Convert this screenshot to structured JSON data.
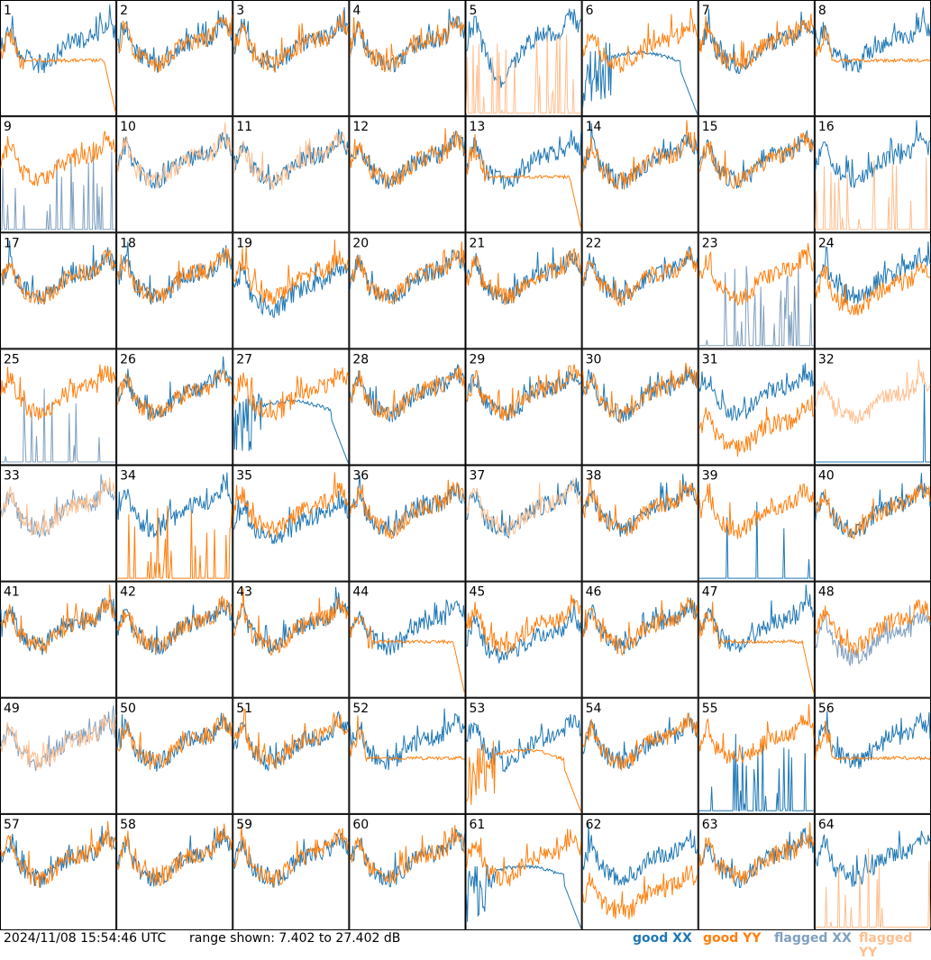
{
  "footer": {
    "timestamp": "2024/11/08 15:54:46 UTC",
    "range_text": "range shown: 7.402 to 27.402 dB"
  },
  "legend": [
    {
      "label": "good XX",
      "color": "#1f77b4"
    },
    {
      "label": "good YY",
      "color": "#ff7f0e"
    },
    {
      "label": "flagged XX",
      "color": "#7f9fbf"
    },
    {
      "label": "flagged YY",
      "color": "#ffbf8f"
    }
  ],
  "chart_data": {
    "type": "line",
    "grid": {
      "rows": 8,
      "cols": 8
    },
    "ylim": [
      7.402,
      27.402
    ],
    "yunit": "dB",
    "panel_labels": [
      "1",
      "2",
      "3",
      "4",
      "5",
      "6",
      "7",
      "8",
      "9",
      "10",
      "11",
      "12",
      "13",
      "14",
      "15",
      "16",
      "17",
      "18",
      "19",
      "20",
      "21",
      "22",
      "23",
      "24",
      "25",
      "26",
      "27",
      "28",
      "29",
      "30",
      "31",
      "32",
      "33",
      "34",
      "35",
      "36",
      "37",
      "38",
      "39",
      "40",
      "41",
      "42",
      "43",
      "44",
      "45",
      "46",
      "47",
      "48",
      "49",
      "50",
      "51",
      "52",
      "53",
      "54",
      "55",
      "56",
      "57",
      "58",
      "59",
      "60",
      "61",
      "62",
      "63",
      "64"
    ],
    "panels": [
      {
        "xx": "good",
        "yy": "anom-flat-drop"
      },
      {
        "xx": "good",
        "yy": "good"
      },
      {
        "xx": "good",
        "yy": "good"
      },
      {
        "xx": "good",
        "yy": "good"
      },
      {
        "xx": "high-deep",
        "yy": "spikes-flagged"
      },
      {
        "xx": "anom-hump",
        "yy": "good"
      },
      {
        "xx": "good",
        "yy": "good"
      },
      {
        "xx": "good",
        "yy": "anom-flat"
      },
      {
        "xx": "spikes-flagged",
        "yy": "good"
      },
      {
        "xx": "good",
        "yy": "flagged"
      },
      {
        "xx": "good",
        "yy": "flagged"
      },
      {
        "xx": "good",
        "yy": "good"
      },
      {
        "xx": "good",
        "yy": "anom-flat-drop"
      },
      {
        "xx": "good",
        "yy": "good"
      },
      {
        "xx": "good",
        "yy": "good"
      },
      {
        "xx": "good",
        "yy": "spikes-flagged"
      },
      {
        "xx": "good",
        "yy": "good"
      },
      {
        "xx": "good",
        "yy": "good"
      },
      {
        "xx": "good-low",
        "yy": "good"
      },
      {
        "xx": "good",
        "yy": "good"
      },
      {
        "xx": "good",
        "yy": "good"
      },
      {
        "xx": "good",
        "yy": "good"
      },
      {
        "xx": "spikes-flagged",
        "yy": "good"
      },
      {
        "xx": "good",
        "yy": "good-low"
      },
      {
        "xx": "spikes-flagged-sparse",
        "yy": "good"
      },
      {
        "xx": "good",
        "yy": "good"
      },
      {
        "xx": "anom-hump",
        "yy": "good"
      },
      {
        "xx": "good",
        "yy": "good"
      },
      {
        "xx": "good",
        "yy": "good"
      },
      {
        "xx": "good",
        "yy": "good"
      },
      {
        "xx": "good",
        "yy": "anom-low"
      },
      {
        "xx": "spikes-good-sparse",
        "yy": "flagged-high"
      },
      {
        "xx": "flagged",
        "yy": "flagged"
      },
      {
        "xx": "good",
        "yy": "spikes-good"
      },
      {
        "xx": "good-low",
        "yy": "good"
      },
      {
        "xx": "good",
        "yy": "good"
      },
      {
        "xx": "good",
        "yy": "flagged"
      },
      {
        "xx": "good",
        "yy": "good"
      },
      {
        "xx": "spikes-good-sparse",
        "yy": "good"
      },
      {
        "xx": "good",
        "yy": "good"
      },
      {
        "xx": "good",
        "yy": "good"
      },
      {
        "xx": "good",
        "yy": "good"
      },
      {
        "xx": "good",
        "yy": "good"
      },
      {
        "xx": "good",
        "yy": "anom-flat-drop"
      },
      {
        "xx": "good-low",
        "yy": "good"
      },
      {
        "xx": "good",
        "yy": "good"
      },
      {
        "xx": "good",
        "yy": "anom-flat-drop"
      },
      {
        "xx": "flagged-low",
        "yy": "good"
      },
      {
        "xx": "flagged",
        "yy": "flagged"
      },
      {
        "xx": "good",
        "yy": "good"
      },
      {
        "xx": "good",
        "yy": "good"
      },
      {
        "xx": "good",
        "yy": "anom-flat"
      },
      {
        "xx": "good",
        "yy": "anom-hump"
      },
      {
        "xx": "good",
        "yy": "good"
      },
      {
        "xx": "spikes-good",
        "yy": "good"
      },
      {
        "xx": "good",
        "yy": "anom-flat"
      },
      {
        "xx": "good",
        "yy": "good"
      },
      {
        "xx": "good",
        "yy": "good"
      },
      {
        "xx": "good",
        "yy": "good"
      },
      {
        "xx": "good",
        "yy": "good"
      },
      {
        "xx": "anom-hump",
        "yy": "good"
      },
      {
        "xx": "good",
        "yy": "anom-low"
      },
      {
        "xx": "good",
        "yy": "good"
      },
      {
        "xx": "good",
        "yy": "spikes-flagged-sparse"
      }
    ]
  }
}
